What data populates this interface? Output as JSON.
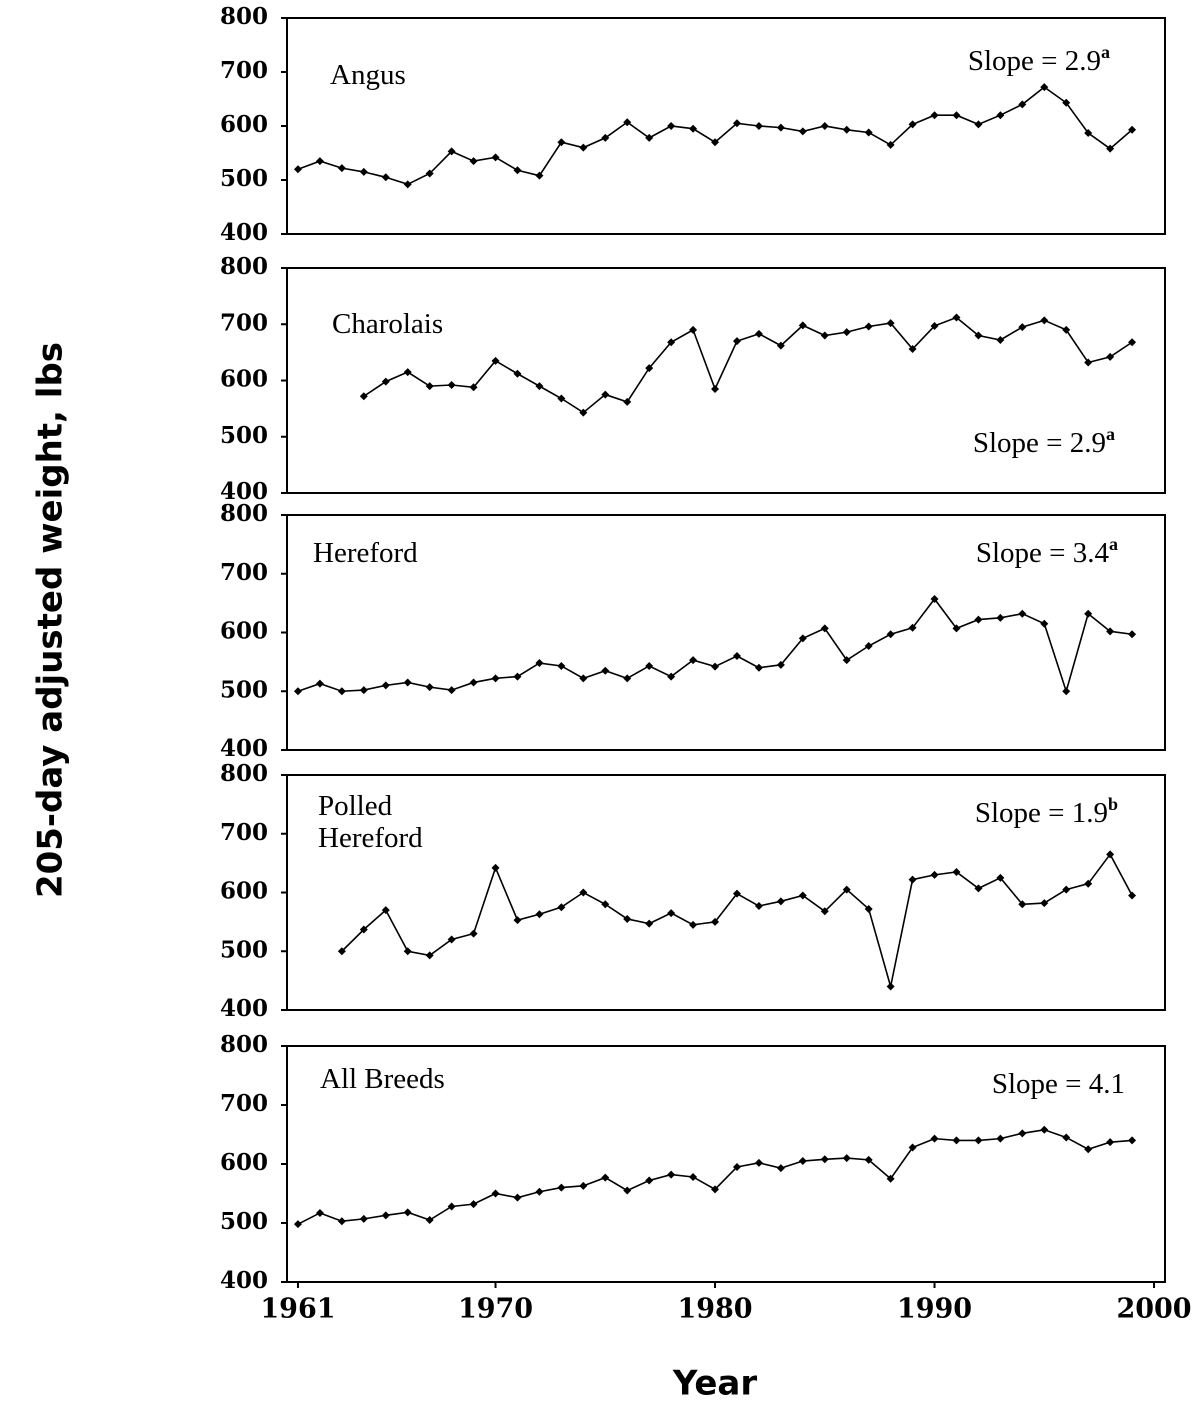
{
  "ylabel": "205-day adjusted weight, lbs",
  "xlabel": "Year",
  "chart_data": [
    {
      "type": "line",
      "title": "Angus",
      "slope": "Slope = 2.9",
      "slope_note": "a",
      "x": [
        1961,
        1962,
        1963,
        1964,
        1965,
        1966,
        1967,
        1968,
        1969,
        1970,
        1971,
        1972,
        1973,
        1974,
        1975,
        1976,
        1977,
        1978,
        1979,
        1980,
        1981,
        1982,
        1983,
        1984,
        1985,
        1986,
        1987,
        1988,
        1989,
        1990,
        1991,
        1992,
        1993,
        1994,
        1995,
        1996,
        1997,
        1998,
        1999
      ],
      "values": [
        520,
        535,
        522,
        515,
        505,
        492,
        512,
        553,
        535,
        542,
        518,
        508,
        570,
        560,
        578,
        607,
        578,
        600,
        595,
        570,
        605,
        600,
        597,
        590,
        600,
        593,
        588,
        565,
        603,
        620,
        620,
        603,
        620,
        640,
        672,
        643,
        587,
        558,
        593
      ],
      "color": "#000000",
      "ylim": [
        400,
        800
      ],
      "yticks": [
        400,
        500,
        600,
        700,
        800
      ],
      "xlim": [
        1960.5,
        2000.5
      ]
    },
    {
      "type": "line",
      "title": "Charolais",
      "slope": "Slope = 2.9",
      "slope_note": "a",
      "x": [
        1961,
        1962,
        1963,
        1964,
        1965,
        1966,
        1967,
        1968,
        1969,
        1970,
        1971,
        1972,
        1973,
        1974,
        1975,
        1976,
        1977,
        1978,
        1979,
        1980,
        1981,
        1982,
        1983,
        1984,
        1985,
        1986,
        1987,
        1988,
        1989,
        1990,
        1991,
        1992,
        1993,
        1994,
        1995,
        1996,
        1997,
        1998,
        1999
      ],
      "values": [
        null,
        null,
        null,
        572,
        598,
        615,
        590,
        592,
        588,
        635,
        612,
        590,
        568,
        543,
        575,
        562,
        622,
        668,
        690,
        585,
        670,
        683,
        662,
        698,
        680,
        686,
        696,
        702,
        656,
        697,
        712,
        680,
        672,
        695,
        707,
        690,
        632,
        642,
        668
      ],
      "color": "#000000",
      "ylim": [
        400,
        800
      ],
      "yticks": [
        400,
        500,
        600,
        700,
        800
      ],
      "xlim": [
        1960.5,
        2000.5
      ]
    },
    {
      "type": "line",
      "title": "Hereford",
      "slope": "Slope = 3.4",
      "slope_note": "a",
      "x": [
        1961,
        1962,
        1963,
        1964,
        1965,
        1966,
        1967,
        1968,
        1969,
        1970,
        1971,
        1972,
        1973,
        1974,
        1975,
        1976,
        1977,
        1978,
        1979,
        1980,
        1981,
        1982,
        1983,
        1984,
        1985,
        1986,
        1987,
        1988,
        1989,
        1990,
        1991,
        1992,
        1993,
        1994,
        1995,
        1996,
        1997,
        1998,
        1999
      ],
      "values": [
        500,
        513,
        500,
        502,
        510,
        515,
        507,
        502,
        515,
        522,
        525,
        548,
        543,
        522,
        535,
        522,
        543,
        525,
        553,
        542,
        560,
        540,
        545,
        590,
        607,
        553,
        577,
        597,
        608,
        657,
        607,
        622,
        625,
        632,
        615,
        500,
        632,
        602,
        597
      ],
      "color": "#000000",
      "ylim": [
        400,
        800
      ],
      "yticks": [
        400,
        500,
        600,
        700,
        800
      ],
      "xlim": [
        1960.5,
        2000.5
      ]
    },
    {
      "type": "line",
      "title": "Polled\nHereford",
      "slope": "Slope = 1.9",
      "slope_note": "b",
      "x": [
        1961,
        1962,
        1963,
        1964,
        1965,
        1966,
        1967,
        1968,
        1969,
        1970,
        1971,
        1972,
        1973,
        1974,
        1975,
        1976,
        1977,
        1978,
        1979,
        1980,
        1981,
        1982,
        1983,
        1984,
        1985,
        1986,
        1987,
        1988,
        1989,
        1990,
        1991,
        1992,
        1993,
        1994,
        1995,
        1996,
        1997,
        1998,
        1999
      ],
      "values": [
        null,
        null,
        500,
        537,
        570,
        500,
        493,
        520,
        530,
        642,
        553,
        563,
        575,
        600,
        580,
        555,
        547,
        565,
        545,
        550,
        598,
        577,
        585,
        595,
        568,
        605,
        572,
        440,
        622,
        630,
        635,
        607,
        625,
        580,
        582,
        605,
        615,
        665,
        595
      ],
      "color": "#000000",
      "ylim": [
        400,
        800
      ],
      "yticks": [
        400,
        500,
        600,
        700,
        800
      ],
      "xlim": [
        1960.5,
        2000.5
      ]
    },
    {
      "type": "line",
      "title": "All Breeds",
      "slope": "Slope = 4.1",
      "x": [
        1961,
        1962,
        1963,
        1964,
        1965,
        1966,
        1967,
        1968,
        1969,
        1970,
        1971,
        1972,
        1973,
        1974,
        1975,
        1976,
        1977,
        1978,
        1979,
        1980,
        1981,
        1982,
        1983,
        1984,
        1985,
        1986,
        1987,
        1988,
        1989,
        1990,
        1991,
        1992,
        1993,
        1994,
        1995,
        1996,
        1997,
        1998,
        1999
      ],
      "values": [
        498,
        517,
        503,
        507,
        513,
        518,
        505,
        528,
        532,
        550,
        543,
        553,
        560,
        563,
        577,
        555,
        572,
        582,
        578,
        557,
        595,
        602,
        593,
        605,
        608,
        610,
        607,
        575,
        628,
        643,
        640,
        640,
        643,
        652,
        658,
        645,
        625,
        637,
        640
      ],
      "color": "#000000",
      "ylim": [
        400,
        800
      ],
      "yticks": [
        400,
        500,
        600,
        700,
        800
      ],
      "xlim": [
        1960.5,
        2000.5
      ],
      "xticks": [
        1961,
        1970,
        1980,
        1990,
        2000
      ]
    }
  ]
}
